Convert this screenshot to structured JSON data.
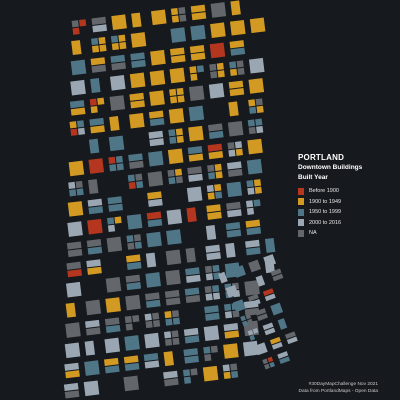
{
  "map": {
    "title": "PORTLAND",
    "subtitle_line1": "Downtown Buildings",
    "subtitle_line2": "Built Year"
  },
  "legend": {
    "items": [
      {
        "label": "Before 1900",
        "color": "#b5361f"
      },
      {
        "label": "1900 to 1949",
        "color": "#d29a22"
      },
      {
        "label": "1950 to 1999",
        "color": "#4f7687"
      },
      {
        "label": "2000 to 2016",
        "color": "#9aa7b2"
      },
      {
        "label": "NA",
        "color": "#63666b"
      }
    ]
  },
  "credits": {
    "line1": "#30DayMapChallenge Nov 2021",
    "line2": "Data from PortlandMaps - Open Data"
  },
  "colors": {
    "background": "#16191e"
  }
}
